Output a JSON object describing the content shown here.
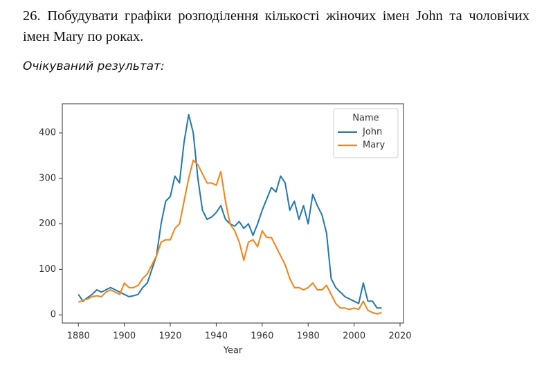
{
  "text": {
    "task": "26. Побудувати графіки розподілення кількості жіночих імен John та чоловічих імен Mary по роках.",
    "expected": "Очікуваний результат:"
  },
  "chart_data": {
    "type": "line",
    "xlabel": "Year",
    "x": [
      1880,
      1882,
      1884,
      1886,
      1888,
      1890,
      1892,
      1894,
      1896,
      1898,
      1900,
      1902,
      1904,
      1906,
      1908,
      1910,
      1912,
      1914,
      1916,
      1918,
      1920,
      1922,
      1924,
      1926,
      1928,
      1930,
      1932,
      1934,
      1936,
      1938,
      1940,
      1942,
      1944,
      1946,
      1948,
      1950,
      1952,
      1954,
      1956,
      1958,
      1960,
      1962,
      1964,
      1966,
      1968,
      1970,
      1972,
      1974,
      1976,
      1978,
      1980,
      1982,
      1984,
      1986,
      1988,
      1990,
      1992,
      1994,
      1996,
      1998,
      2000,
      2002,
      2004,
      2006,
      2008,
      2010,
      2012
    ],
    "series": [
      {
        "name": "John",
        "color": "#1f77b4",
        "values": [
          45,
          30,
          38,
          45,
          55,
          50,
          55,
          60,
          55,
          50,
          45,
          40,
          42,
          45,
          60,
          70,
          100,
          130,
          200,
          250,
          260,
          305,
          290,
          380,
          440,
          400,
          300,
          230,
          210,
          215,
          225,
          240,
          210,
          200,
          195,
          205,
          190,
          200,
          175,
          200,
          230,
          255,
          280,
          270,
          305,
          290,
          230,
          250,
          210,
          240,
          200,
          265,
          240,
          220,
          180,
          80,
          60,
          50,
          40,
          35,
          30,
          25,
          70,
          30,
          30,
          15,
          15
        ]
      },
      {
        "name": "Mary",
        "color": "#ff7f0e",
        "values": [
          28,
          32,
          35,
          40,
          42,
          40,
          50,
          55,
          50,
          45,
          70,
          60,
          60,
          65,
          80,
          90,
          110,
          130,
          160,
          165,
          165,
          190,
          200,
          250,
          300,
          340,
          330,
          310,
          290,
          290,
          285,
          315,
          250,
          200,
          185,
          160,
          120,
          160,
          165,
          150,
          185,
          170,
          170,
          150,
          130,
          110,
          80,
          60,
          60,
          55,
          60,
          70,
          55,
          55,
          65,
          45,
          25,
          15,
          15,
          12,
          15,
          12,
          30,
          10,
          5,
          2,
          5
        ]
      }
    ],
    "xlim": [
      1873,
      2021.5
    ],
    "ylim": [
      -18,
      464
    ],
    "xticks": [
      1880,
      1900,
      1920,
      1940,
      1960,
      1980,
      2000,
      2020
    ],
    "yticks": [
      0,
      100,
      200,
      300,
      400
    ],
    "legend": "upper right",
    "legend_title": "Name"
  }
}
